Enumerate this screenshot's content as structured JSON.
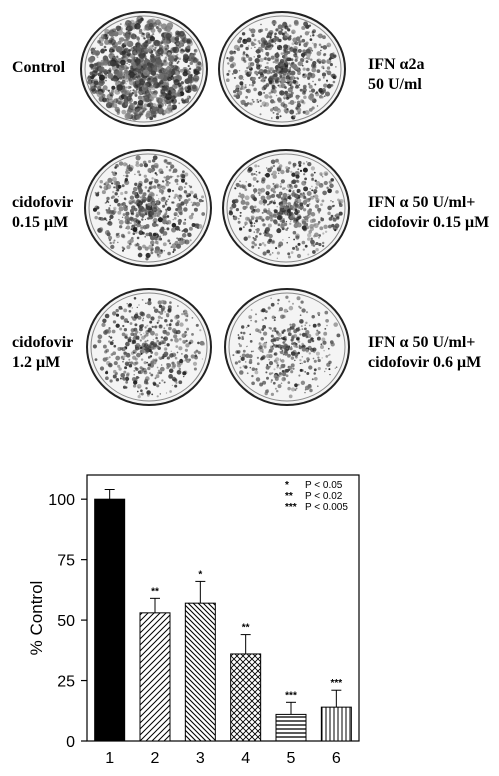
{
  "plates": [
    {
      "label": [
        "Control",
        ""
      ],
      "density": 1.0
    },
    {
      "label": [
        "IFN α2a",
        "50 U/ml"
      ],
      "density": 0.55
    },
    {
      "label": [
        "cidofovir",
        "0.15 μM"
      ],
      "density": 0.5
    },
    {
      "label": [
        "IFN α 50 U/ml+",
        "cidofovir 0.15 μM"
      ],
      "density": 0.45
    },
    {
      "label": [
        "cidofovir",
        "1.2 μM"
      ],
      "density": 0.38
    },
    {
      "label": [
        "IFN α 50 U/ml+",
        "cidofovir 0.6 μM"
      ],
      "density": 0.3
    }
  ],
  "chart_data": {
    "type": "bar",
    "ylabel": "% Control",
    "xlabel": "",
    "ylim": [
      0,
      110
    ],
    "yticks": [
      0,
      25,
      50,
      75,
      100
    ],
    "categories": [
      "1",
      "2",
      "3",
      "4",
      "5",
      "6"
    ],
    "values": [
      100,
      53,
      57,
      36,
      11,
      14
    ],
    "errors": [
      4,
      6,
      9,
      8,
      5,
      7
    ],
    "significance": [
      "",
      "**",
      "*",
      "**",
      "***",
      "***"
    ],
    "patterns": [
      "solid",
      "diag-right",
      "diag-left",
      "crosshatch",
      "horizontal",
      "vertical"
    ],
    "legend": [
      {
        "mark": "*",
        "text": "P < 0.05"
      },
      {
        "mark": "**",
        "text": "P < 0.02"
      },
      {
        "mark": "***",
        "text": "P < 0.005"
      }
    ],
    "legend_position": "top-right"
  }
}
